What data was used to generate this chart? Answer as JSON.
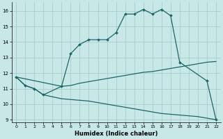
{
  "xlabel": "Humidex (Indice chaleur)",
  "bg_color": "#c8e8e8",
  "grid_color": "#a8cccc",
  "line_color": "#1a6666",
  "xlim": [
    -0.5,
    22.5
  ],
  "ylim": [
    8.85,
    16.55
  ],
  "xticks": [
    0,
    1,
    2,
    3,
    4,
    5,
    6,
    7,
    8,
    9,
    10,
    11,
    12,
    13,
    14,
    15,
    16,
    17,
    18,
    19,
    20,
    21,
    22
  ],
  "yticks": [
    9,
    10,
    11,
    12,
    13,
    14,
    15,
    16
  ],
  "curve_top_x": [
    0,
    1,
    2,
    3,
    5,
    6,
    7,
    8,
    9,
    10,
    11,
    12,
    13,
    14,
    15,
    16,
    17,
    18,
    21,
    22
  ],
  "curve_top_y": [
    11.75,
    11.2,
    11.0,
    10.6,
    11.15,
    13.25,
    13.85,
    14.15,
    14.15,
    14.15,
    14.6,
    15.8,
    15.8,
    16.1,
    15.8,
    16.1,
    15.7,
    12.7,
    11.5,
    9.0
  ],
  "curve_mid_x": [
    0,
    5,
    6,
    7,
    8,
    9,
    10,
    11,
    12,
    13,
    14,
    15,
    16,
    17,
    18,
    19,
    20,
    21,
    22
  ],
  "curve_mid_y": [
    11.75,
    11.15,
    11.2,
    11.35,
    11.45,
    11.55,
    11.65,
    11.75,
    11.85,
    11.95,
    12.05,
    12.1,
    12.2,
    12.3,
    12.4,
    12.5,
    12.6,
    12.7,
    12.75
  ],
  "curve_bot_x": [
    0,
    1,
    2,
    3,
    5,
    6,
    7,
    8,
    9,
    10,
    11,
    12,
    13,
    14,
    15,
    16,
    17,
    18,
    19,
    20,
    21,
    22
  ],
  "curve_bot_y": [
    11.75,
    11.2,
    11.0,
    10.6,
    10.35,
    10.3,
    10.25,
    10.2,
    10.1,
    10.0,
    9.9,
    9.8,
    9.7,
    9.6,
    9.5,
    9.4,
    9.35,
    9.3,
    9.25,
    9.2,
    9.1,
    9.0
  ]
}
